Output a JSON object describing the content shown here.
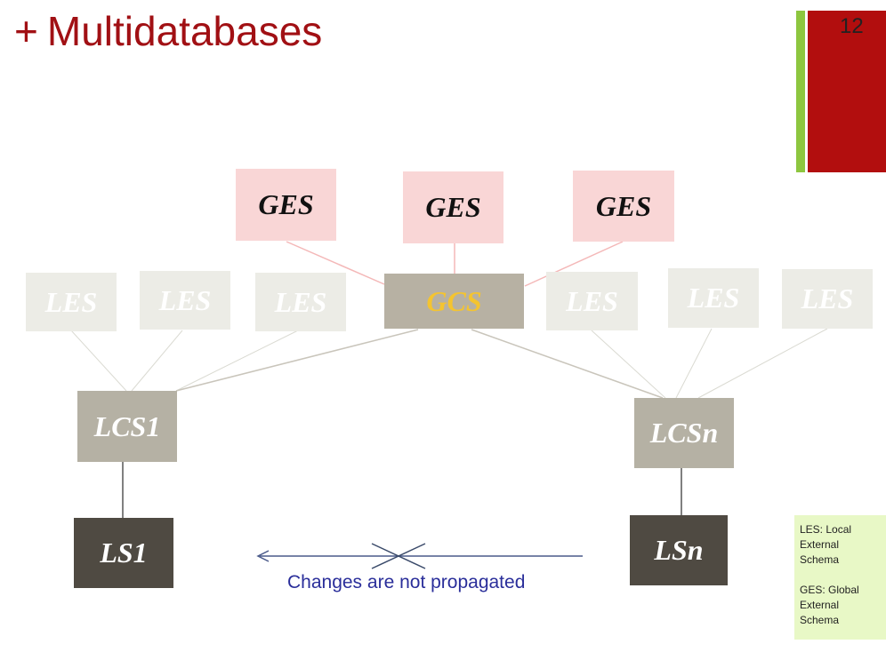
{
  "slide": {
    "title_prefix": "+",
    "title": "Multidatabases",
    "number": "12",
    "colors": {
      "title": "#a11014",
      "accent_green": "#8dc63f",
      "accent_red": "#b20e0e"
    }
  },
  "diagram": {
    "ges_label": "GES",
    "gcs_label": "GCS",
    "les_label": "LES",
    "lcs1_label": "LCS1",
    "lcsn_label": "LCSn",
    "ls1_label": "LS1",
    "lsn_label": "LSn",
    "note": "Changes are not propagated"
  },
  "legend": {
    "les": "LES: Local External Schema",
    "ges": "GES: Global External Schema"
  }
}
